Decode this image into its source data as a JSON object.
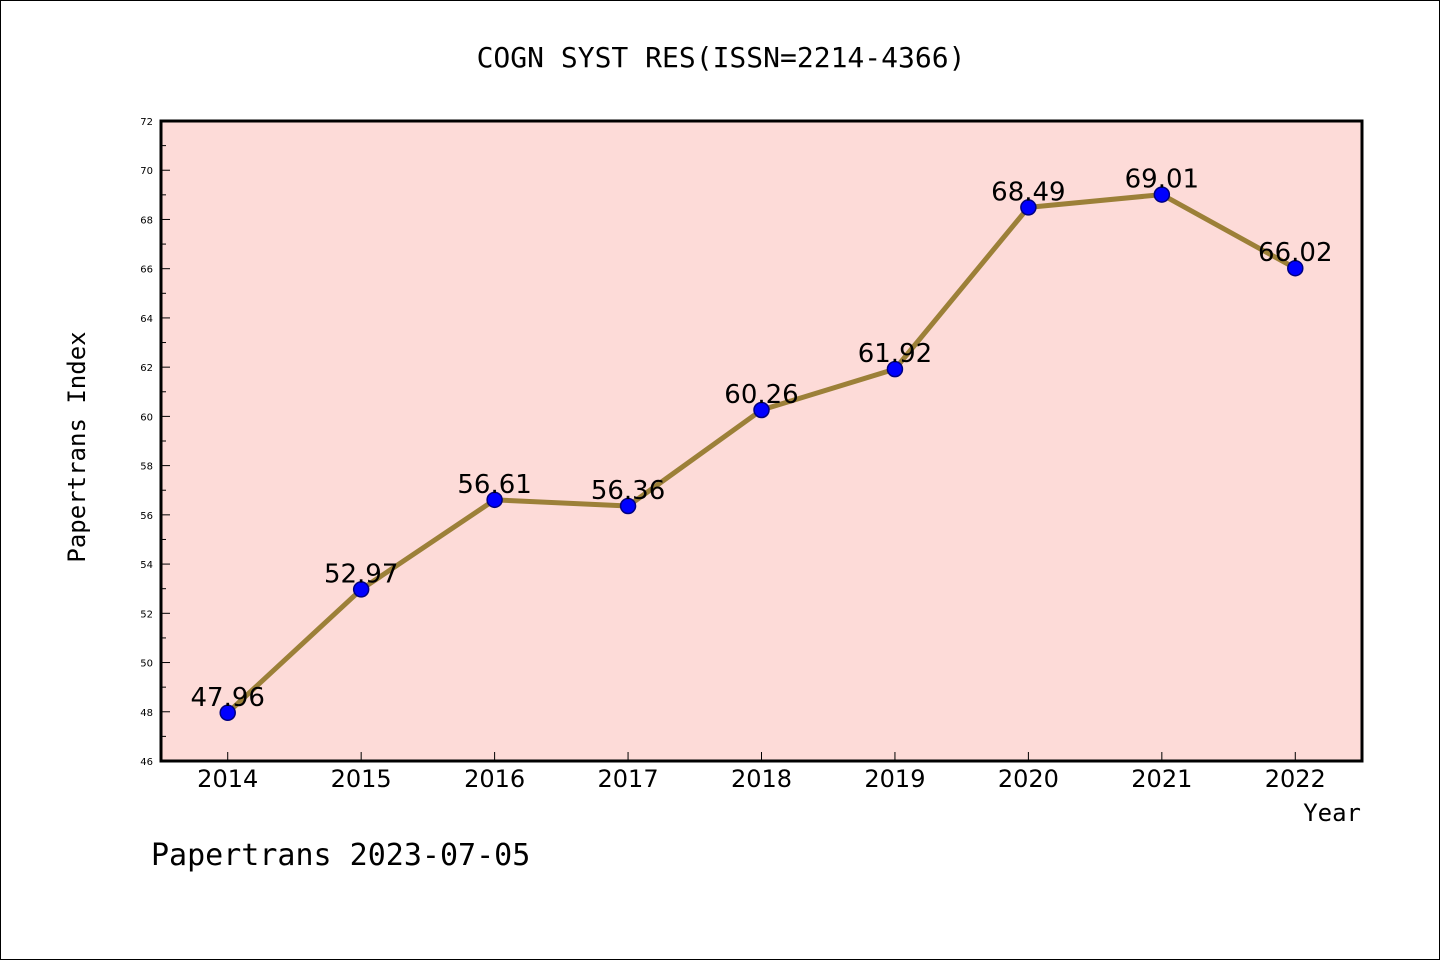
{
  "chart_data": {
    "type": "line",
    "title": "COGN SYST RES(ISSN=2214-4366)",
    "xlabel": "Year",
    "ylabel": "Papertrans Index",
    "categories": [
      "2014",
      "2015",
      "2016",
      "2017",
      "2018",
      "2019",
      "2020",
      "2021",
      "2022"
    ],
    "values": [
      47.96,
      52.97,
      56.61,
      56.36,
      60.26,
      61.92,
      68.49,
      69.01,
      66.02
    ],
    "data_labels": [
      "47.96",
      "52.97",
      "56.61",
      "56.36",
      "60.26",
      "61.92",
      "68.49",
      "69.01",
      "66.02"
    ],
    "ylim": [
      46,
      72
    ],
    "yticks": [
      "46",
      "48",
      "50",
      "52",
      "54",
      "56",
      "58",
      "60",
      "62",
      "64",
      "66",
      "68",
      "70",
      "72"
    ],
    "grid": false,
    "legend": "none",
    "colors": {
      "plot_background": "#fddbd8",
      "line": "#9c8038",
      "marker": "#0000ff",
      "marker_edge": "#000080"
    }
  },
  "footer": {
    "text": "Papertrans 2023-07-05"
  }
}
